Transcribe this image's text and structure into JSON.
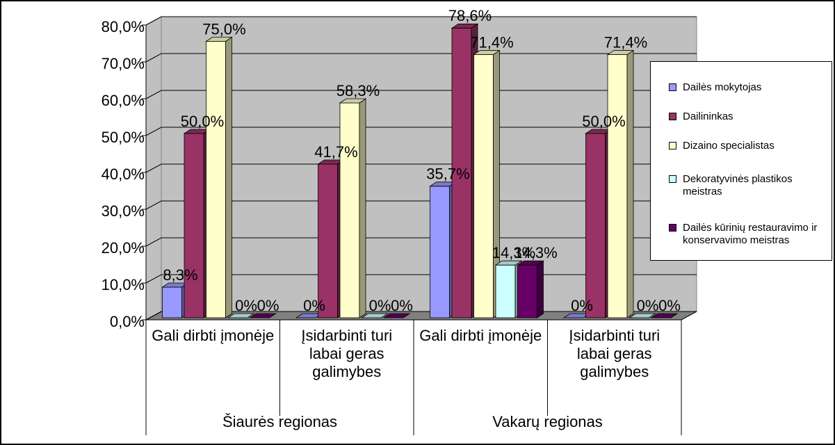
{
  "chart_data": {
    "type": "bar3d",
    "categories": [
      "Gali dirbti įmonėje",
      "Įsidarbinti turi labai geras galimybes",
      "Gali dirbti įmonėje",
      "Įsidarbinti turi labai geras galimybes"
    ],
    "category_groups": [
      "Šiaurės regionas",
      "Vakarų regionas"
    ],
    "series": [
      {
        "name": "Dailės mokytojas",
        "color": "#9999ff",
        "values": [
          8.3,
          0,
          35.7,
          0
        ],
        "value_labels": [
          "8,3%",
          "0%",
          "35,7%",
          "0%"
        ]
      },
      {
        "name": "Dailininkas",
        "color": "#993366",
        "values": [
          50,
          41.7,
          78.6,
          50
        ],
        "value_labels": [
          "50,0%",
          "41,7%",
          "78,6%",
          "50,0%"
        ]
      },
      {
        "name": "Dizaino specialistas",
        "color": "#ffffcc",
        "values": [
          75,
          58.3,
          71.4,
          71.4
        ],
        "value_labels": [
          "75,0%",
          "58,3%",
          "71,4%",
          "71,4%"
        ]
      },
      {
        "name": "Dekoratyvinės plastikos meistras",
        "color": "#ccffff",
        "values": [
          0,
          0,
          14.3,
          0
        ],
        "value_labels": [
          "0%",
          "0%",
          "14,3%",
          "0%"
        ]
      },
      {
        "name": "Dailės kūrinių restauravimo ir konservavimo meistras",
        "color": "#660066",
        "values": [
          0,
          0,
          14.3,
          0
        ],
        "value_labels": [
          "0%",
          "0%",
          "14,3%",
          "0%"
        ]
      }
    ],
    "ylim": [
      0,
      80
    ],
    "yticks": [
      {
        "value": 0,
        "label": "0,0%"
      },
      {
        "value": 10,
        "label": "10,0%"
      },
      {
        "value": 20,
        "label": "20,0%"
      },
      {
        "value": 30,
        "label": "30,0%"
      },
      {
        "value": 40,
        "label": "40,0%"
      },
      {
        "value": 50,
        "label": "50,0%"
      },
      {
        "value": 60,
        "label": "60,0%"
      },
      {
        "value": 70,
        "label": "70,0%"
      },
      {
        "value": 80,
        "label": "80,0%"
      }
    ],
    "grid": true,
    "legend": "right"
  }
}
